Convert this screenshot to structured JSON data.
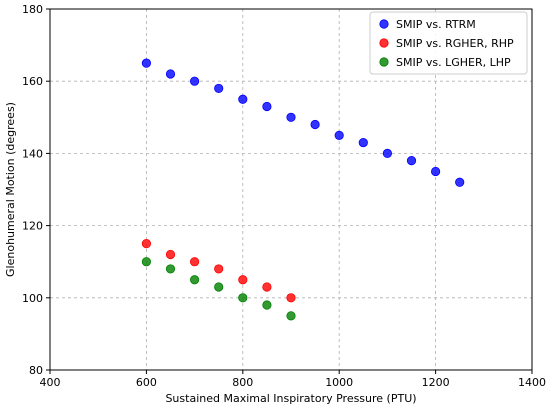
{
  "chart_data": {
    "type": "scatter",
    "xlabel": "Sustained Maximal Inspiratory Pressure (PTU)",
    "ylabel": "Glenohumeral Motion (degrees)",
    "xlim": [
      400,
      1400
    ],
    "ylim": [
      80,
      180
    ],
    "xticks": [
      400,
      600,
      800,
      1000,
      1200,
      1400
    ],
    "yticks": [
      80,
      100,
      120,
      140,
      160,
      180
    ],
    "grid": true,
    "legend_position": "top-right",
    "series": [
      {
        "name": "SMIP vs. RTRM",
        "color": "#0000ff",
        "points": [
          {
            "x": 600,
            "y": 165
          },
          {
            "x": 650,
            "y": 162
          },
          {
            "x": 700,
            "y": 160
          },
          {
            "x": 750,
            "y": 158
          },
          {
            "x": 800,
            "y": 155
          },
          {
            "x": 850,
            "y": 153
          },
          {
            "x": 900,
            "y": 150
          },
          {
            "x": 950,
            "y": 148
          },
          {
            "x": 1000,
            "y": 145
          },
          {
            "x": 1050,
            "y": 143
          },
          {
            "x": 1100,
            "y": 140
          },
          {
            "x": 1150,
            "y": 138
          },
          {
            "x": 1200,
            "y": 135
          },
          {
            "x": 1250,
            "y": 132
          }
        ]
      },
      {
        "name": "SMIP vs. RGHER, RHP",
        "color": "#ff0000",
        "points": [
          {
            "x": 600,
            "y": 115
          },
          {
            "x": 650,
            "y": 112
          },
          {
            "x": 700,
            "y": 110
          },
          {
            "x": 750,
            "y": 108
          },
          {
            "x": 800,
            "y": 105
          },
          {
            "x": 850,
            "y": 103
          },
          {
            "x": 900,
            "y": 100
          }
        ]
      },
      {
        "name": "SMIP vs. LGHER, LHP",
        "color": "#008000",
        "points": [
          {
            "x": 600,
            "y": 110
          },
          {
            "x": 650,
            "y": 108
          },
          {
            "x": 700,
            "y": 105
          },
          {
            "x": 750,
            "y": 103
          },
          {
            "x": 800,
            "y": 100
          },
          {
            "x": 850,
            "y": 98
          },
          {
            "x": 900,
            "y": 95
          }
        ]
      }
    ]
  }
}
